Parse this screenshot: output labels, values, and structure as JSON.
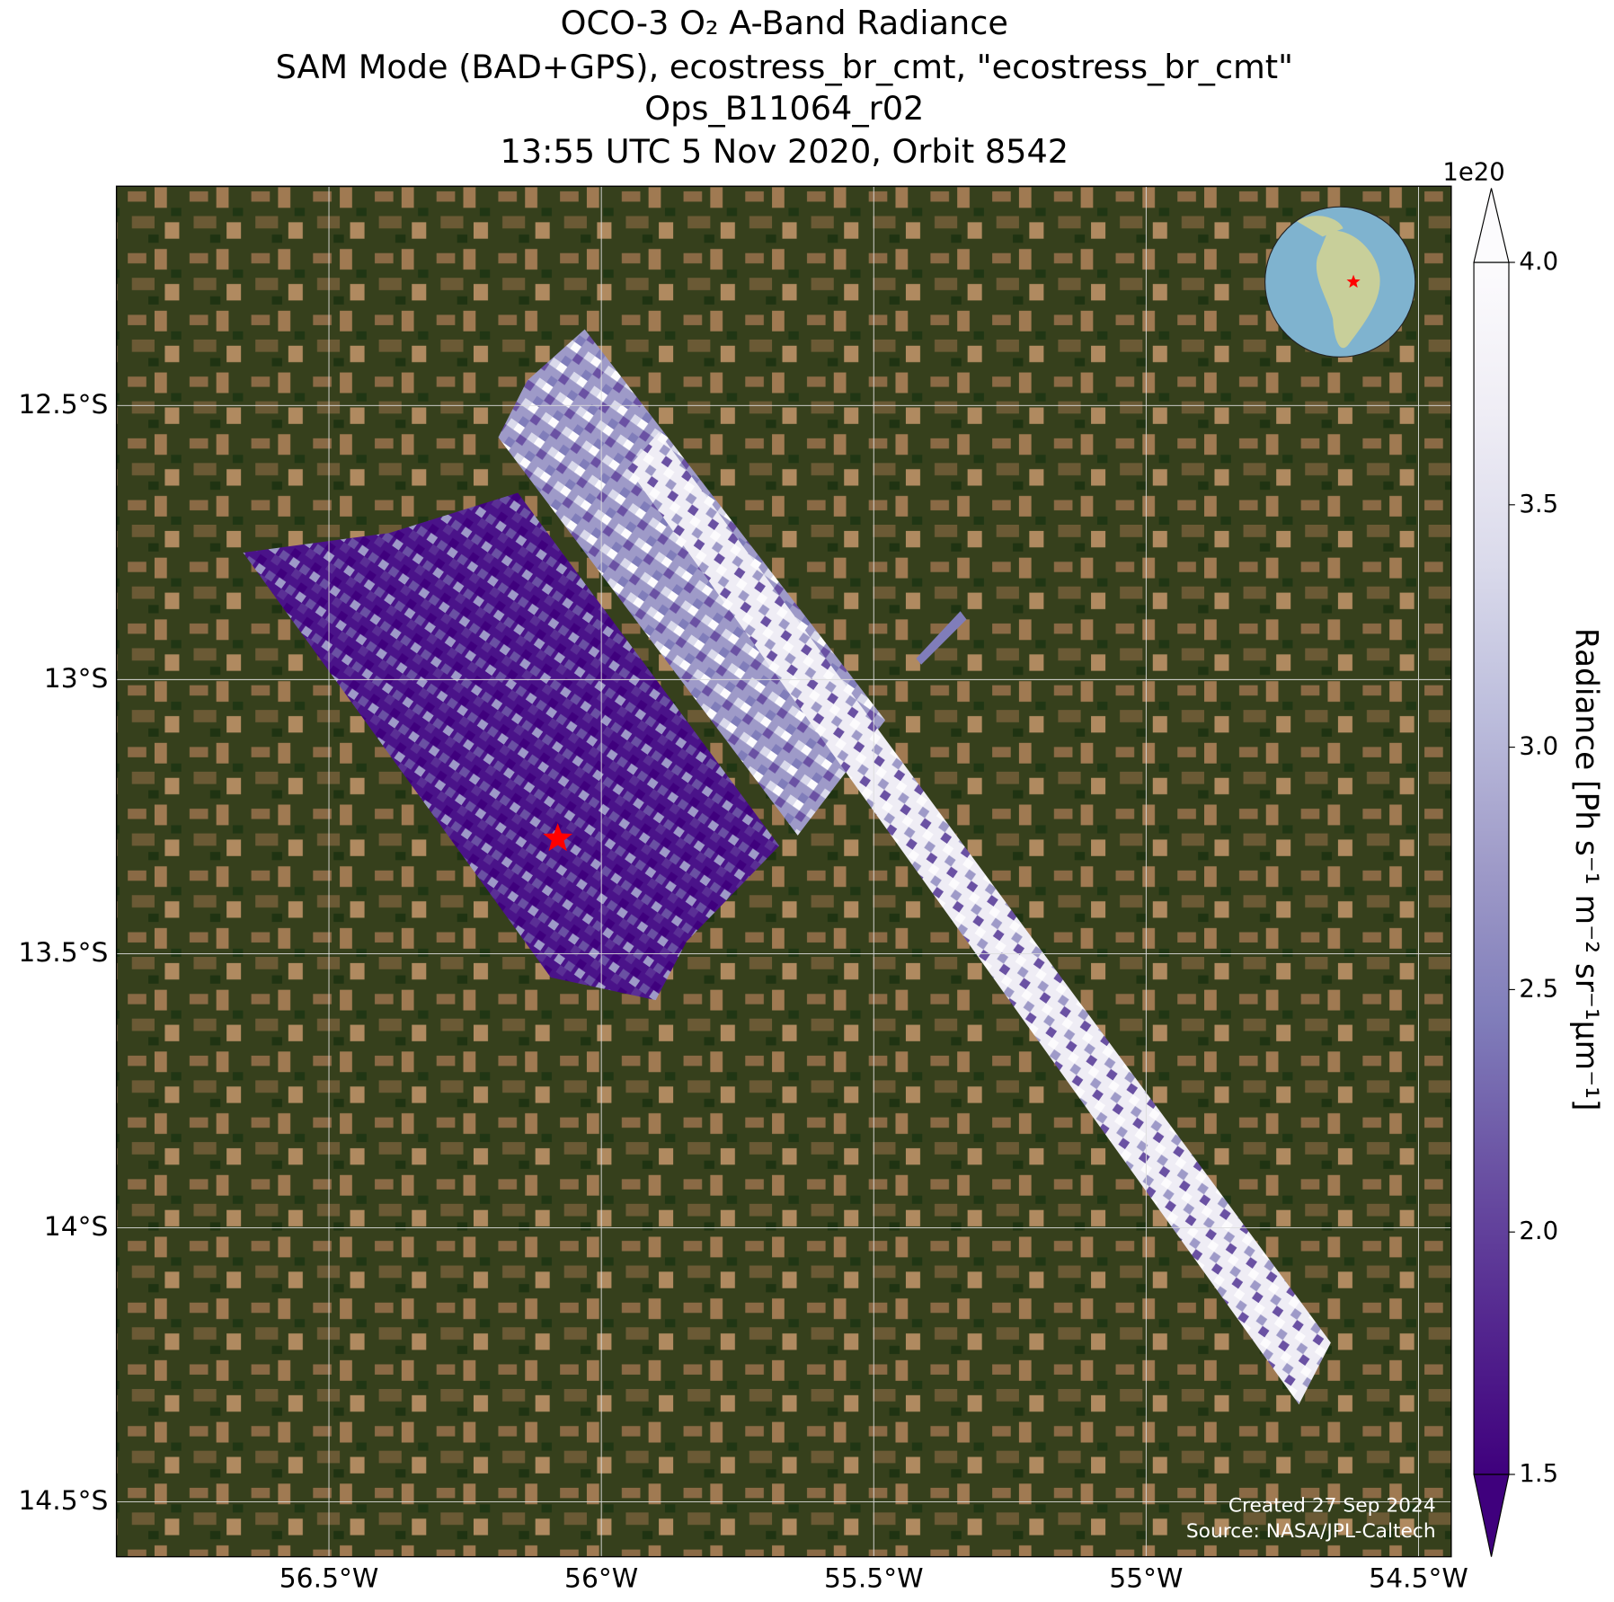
{
  "title": [
    "OCO-3 O₂ A-Band Radiance",
    "SAM Mode (BAD+GPS), ecostress_br_cmt, \"ecostress_br_cmt\"",
    "Ops_B11064_r02",
    "13:55 UTC 5 Nov 2020, Orbit 8542"
  ],
  "map": {
    "xlim": [
      -56.89,
      -54.44
    ],
    "ylim": [
      -14.6,
      -12.1
    ],
    "xticks": [
      {
        "value": -56.5,
        "label": "56.5°W"
      },
      {
        "value": -56,
        "label": "56°W"
      },
      {
        "value": -55.5,
        "label": "55.5°W"
      },
      {
        "value": -55,
        "label": "55°W"
      },
      {
        "value": -54.5,
        "label": "54.5°W"
      }
    ],
    "yticks": [
      {
        "value": -12.5,
        "label": "12.5°S"
      },
      {
        "value": -13,
        "label": "13°S"
      },
      {
        "value": -13.5,
        "label": "13.5°S"
      },
      {
        "value": -14,
        "label": "14°S"
      },
      {
        "value": -14.5,
        "label": "14.5°S"
      }
    ],
    "grid": true,
    "target": {
      "lon": -56.08,
      "lat": -13.29,
      "color": "#ff0000"
    }
  },
  "colorbar": {
    "label": "Radiance [Ph s⁻¹ m⁻² sr⁻¹μm⁻¹]",
    "offset": "1e20",
    "lim": [
      1.5,
      4.0
    ],
    "ticks": [
      1.5,
      {
        "value": 2,
        "label": "2.0"
      },
      2.5,
      {
        "value": 3,
        "label": "3.0"
      },
      3.5,
      {
        "value": 4,
        "label": "4.0"
      }
    ],
    "colormap": [
      "#3f007d",
      "#54278f",
      "#6a51a3",
      "#807dba",
      "#9e9ac8",
      "#bcbddc",
      "#dadaeb",
      "#efedf5",
      "#fcfbfd"
    ]
  },
  "credits": [
    "Created 27 Sep 2024",
    "Source: NASA/JPL-Caltech"
  ]
}
